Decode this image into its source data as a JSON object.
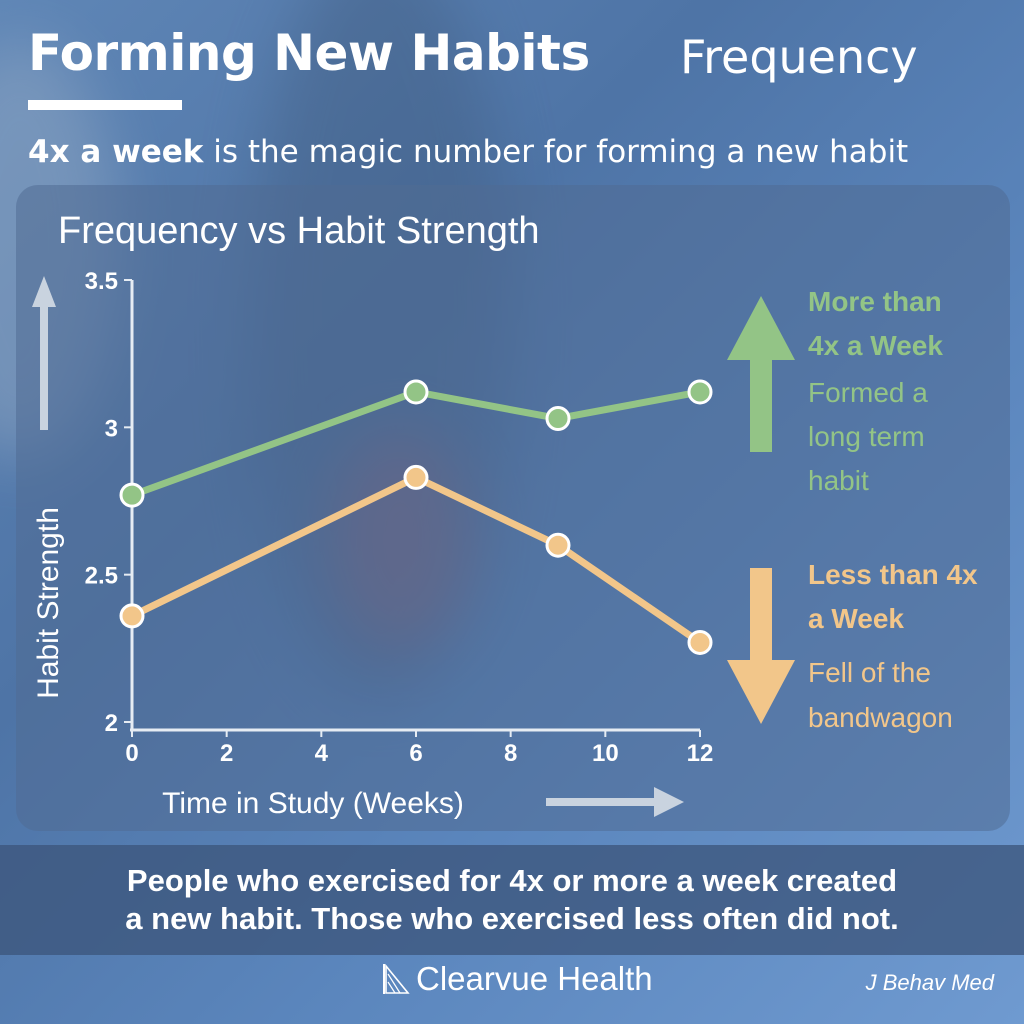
{
  "header": {
    "title": "Forming New Habits",
    "topic": "Frequency",
    "tagline_bold": "4x a week",
    "tagline_rest": " is the magic number for forming a new habit"
  },
  "chart_data": {
    "type": "line",
    "title": "Frequency vs Habit Strength",
    "xlabel": "Time in Study (Weeks)",
    "ylabel": "Habit Strength",
    "xlim": [
      0,
      12
    ],
    "ylim": [
      2,
      3.5
    ],
    "x_ticks": [
      0,
      2,
      4,
      6,
      8,
      10,
      12
    ],
    "y_ticks": [
      2,
      2.5,
      3,
      3.5
    ],
    "y_tick_labels": [
      "2",
      "2.5",
      "3",
      "3.5"
    ],
    "grid": false,
    "series": [
      {
        "x": [
          0,
          6,
          9,
          12
        ],
        "values": [
          2.77,
          3.12,
          3.03,
          3.12
        ],
        "color": "#93c486"
      },
      {
        "x": [
          0,
          6,
          9,
          12
        ],
        "values": [
          2.36,
          2.83,
          2.6,
          2.27
        ],
        "color": "#f2c68a"
      }
    ],
    "annotations": [
      {
        "heading_line1": "More than",
        "heading_line2": "4x a Week",
        "body_line1": "Formed a",
        "body_line2": "long term",
        "body_line3": "habit",
        "color": "#93c486",
        "icon": "arrow-up-icon"
      },
      {
        "heading_line1": "Less than 4x",
        "heading_line2": "a Week",
        "body_line1": "Fell of the",
        "body_line2": "bandwagon",
        "body_line3": "",
        "color": "#f2c68a",
        "icon": "arrow-down-icon"
      }
    ]
  },
  "footer": {
    "line1": "People who exercised for 4x or more a week created",
    "line2": "a new habit. Those who exercised less often did not."
  },
  "brand": {
    "name": "Clearvue Health",
    "icon": "sail-logo-icon"
  },
  "source": "J Behav Med"
}
